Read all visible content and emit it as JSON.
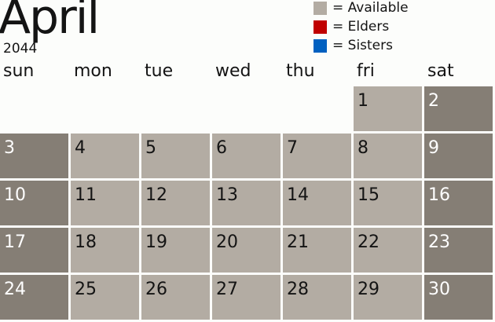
{
  "month": "April",
  "year": "2044",
  "legend": [
    {
      "label": "= Available",
      "color": "#b3aca3"
    },
    {
      "label": "= Elders",
      "color": "#c00000"
    },
    {
      "label": "= Sisters",
      "color": "#0060c0"
    }
  ],
  "days": [
    "sun",
    "mon",
    "tue",
    "wed",
    "thu",
    "fri",
    "sat"
  ],
  "first_weekday": 5,
  "num_days": 30,
  "colors": {
    "weekday": "#b3aca3",
    "weekend": "#857e75"
  }
}
